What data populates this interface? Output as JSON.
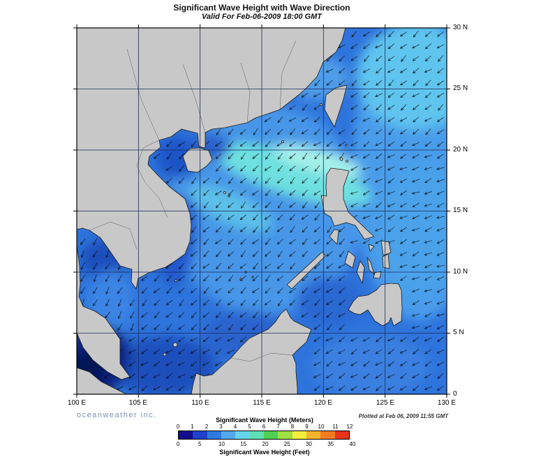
{
  "header": {
    "title": "Significant Wave Height with Wave Direction",
    "subtitle": "Valid For Feb-06-2009 18:00 GMT"
  },
  "map": {
    "lat_labels": [
      "30 N",
      "25 N",
      "20 N",
      "15 N",
      "10 N",
      "5 N",
      "0"
    ],
    "lon_labels": [
      "100 E",
      "105 E",
      "110 E",
      "115 E",
      "120 E",
      "125 E",
      "130 E"
    ],
    "lon_min": 100,
    "lon_max": 130,
    "lat_min": 0,
    "lat_max": 30,
    "grid_step_deg": 5,
    "arrow_field": {
      "spacing_deg": 1,
      "note": "wave direction arrows point predominantly toward the southwest"
    }
  },
  "footer": {
    "brand": "oceanweather inc.",
    "plotted": "Plotted at Feb 06, 2009 11:55 GMT"
  },
  "legend": {
    "title_meters": "Significant Wave Height (Meters)",
    "title_feet": "Significant Wave Height (Feet)",
    "meters_ticks": [
      "0",
      "1",
      "2",
      "3",
      "4",
      "5",
      "6",
      "7",
      "8",
      "9",
      "10",
      "11",
      "12"
    ],
    "feet_ticks": [
      "0",
      "5",
      "10",
      "15",
      "20",
      "25",
      "30",
      "35",
      "40"
    ],
    "colors": [
      "#140c8c",
      "#2041cc",
      "#2f7ae0",
      "#54a8ec",
      "#66d4ec",
      "#5fe0b4",
      "#50cf55",
      "#9fe045",
      "#f2ee3c",
      "#f5b32e",
      "#f07c22",
      "#e53419"
    ]
  }
}
